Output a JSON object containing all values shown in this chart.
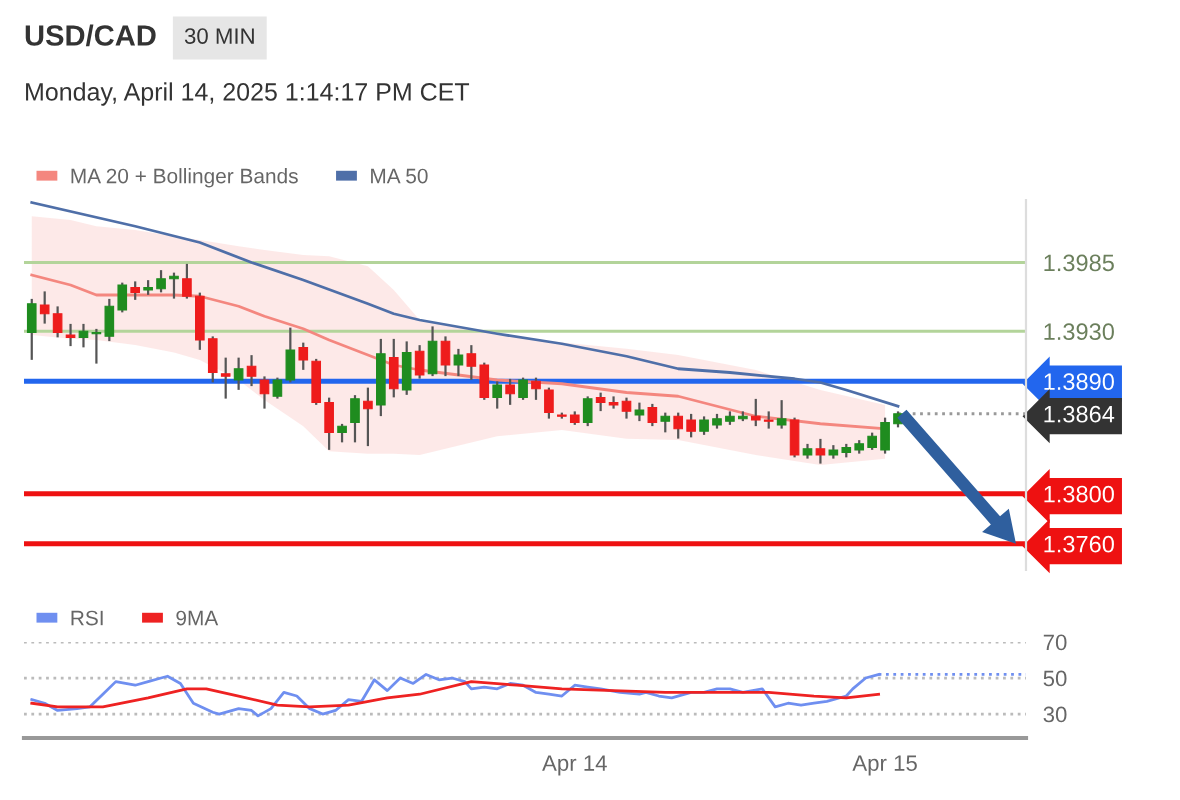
{
  "chart_data": [
    {
      "type": "candlestick",
      "title": "USD/CAD",
      "subtitle": "30 MIN",
      "annotations": [
        "Monday, April 14, 2025 1:14:17 PM CET"
      ],
      "x": [
        "2025-04-12T06:00",
        "2025-04-12T07:00",
        "2025-04-12T08:00",
        "2025-04-12T09:00",
        "2025-04-12T10:00",
        "2025-04-12T11:00",
        "2025-04-12T12:00",
        "2025-04-12T13:00",
        "2025-04-12T14:00",
        "2025-04-12T15:00",
        "2025-04-12T16:00",
        "2025-04-12T17:00",
        "2025-04-12T18:00",
        "2025-04-12T19:00",
        "2025-04-12T20:00",
        "2025-04-12T21:00",
        "2025-04-12T22:00",
        "2025-04-12T23:00",
        "2025-04-13T00:00",
        "2025-04-13T01:00",
        "2025-04-13T02:00",
        "2025-04-13T03:00",
        "2025-04-13T04:00",
        "2025-04-13T05:00",
        "2025-04-13T06:00",
        "2025-04-13T07:00",
        "2025-04-13T08:00",
        "2025-04-13T09:00",
        "2025-04-13T10:00",
        "2025-04-13T11:00",
        "2025-04-13T12:00",
        "2025-04-13T13:00",
        "2025-04-13T14:00",
        "2025-04-13T15:00",
        "2025-04-13T16:00",
        "2025-04-13T17:00",
        "2025-04-13T18:00",
        "2025-04-13T19:00",
        "2025-04-13T20:00",
        "2025-04-13T21:00",
        "2025-04-13T22:00",
        "2025-04-13T23:00",
        "2025-04-14T00:00",
        "2025-04-14T01:00",
        "2025-04-14T02:00",
        "2025-04-14T03:00",
        "2025-04-14T04:00",
        "2025-04-14T05:00",
        "2025-04-14T06:00",
        "2025-04-14T07:00",
        "2025-04-14T08:00",
        "2025-04-14T09:00",
        "2025-04-14T10:00",
        "2025-04-14T11:00",
        "2025-04-14T12:00",
        "2025-04-14T13:00",
        "2025-04-14T14:00",
        "2025-04-14T15:00",
        "2025-04-14T16:00",
        "2025-04-14T17:00",
        "2025-04-14T18:00",
        "2025-04-14T19:00",
        "2025-04-14T20:00",
        "2025-04-14T21:00",
        "2025-04-14T22:00",
        "2025-04-14T23:00",
        "2025-04-15T00:00",
        "2025-04-15T01:00"
      ],
      "ohlc": [
        [
          1.3929,
          1.3955,
          1.3908,
          1.3952
        ],
        [
          1.3951,
          1.3961,
          1.3937,
          1.3944
        ],
        [
          1.3944,
          1.3949,
          1.3926,
          1.3929
        ],
        [
          1.3927,
          1.3935,
          1.3919,
          1.3925
        ],
        [
          1.3925,
          1.3935,
          1.3918,
          1.393
        ],
        [
          1.3928,
          1.3931,
          1.3905,
          1.3929
        ],
        [
          1.3926,
          1.3955,
          1.3923,
          1.395
        ],
        [
          1.3947,
          1.3968,
          1.3946,
          1.3967
        ],
        [
          1.3965,
          1.3969,
          1.3956,
          1.3961
        ],
        [
          1.3963,
          1.397,
          1.396,
          1.3965
        ],
        [
          1.3964,
          1.3978,
          1.3962,
          1.3972
        ],
        [
          1.3972,
          1.3976,
          1.3957,
          1.3974
        ],
        [
          1.3972,
          1.3983,
          1.3957,
          1.3958
        ],
        [
          1.3958,
          1.396,
          1.3916,
          1.3923
        ],
        [
          1.3924,
          1.3925,
          1.389,
          1.3897
        ],
        [
          1.3896,
          1.3908,
          1.3877,
          1.3894
        ],
        [
          1.3891,
          1.3908,
          1.3884,
          1.39
        ],
        [
          1.3902,
          1.391,
          1.3887,
          1.3894
        ],
        [
          1.3891,
          1.3893,
          1.3869,
          1.388
        ],
        [
          1.3878,
          1.3892,
          1.3877,
          1.3891
        ],
        [
          1.3891,
          1.3932,
          1.389,
          1.3915
        ],
        [
          1.3917,
          1.392,
          1.39,
          1.3907
        ],
        [
          1.3906,
          1.3907,
          1.3872,
          1.3873
        ],
        [
          1.3873,
          1.3876,
          1.3836,
          1.3849
        ],
        [
          1.3849,
          1.3855,
          1.3842,
          1.3854
        ],
        [
          1.3857,
          1.3878,
          1.3842,
          1.3876
        ],
        [
          1.3874,
          1.3884,
          1.3839,
          1.3868
        ],
        [
          1.3871,
          1.3923,
          1.3863,
          1.3912
        ],
        [
          1.3909,
          1.3923,
          1.3878,
          1.3884
        ],
        [
          1.3883,
          1.3921,
          1.388,
          1.3913
        ],
        [
          1.3914,
          1.3918,
          1.3893,
          1.3895
        ],
        [
          1.3896,
          1.3933,
          1.3895,
          1.3922
        ],
        [
          1.3922,
          1.3925,
          1.3895,
          1.3903
        ],
        [
          1.3903,
          1.3915,
          1.3895,
          1.3911
        ],
        [
          1.3912,
          1.3918,
          1.3892,
          1.3902
        ],
        [
          1.3903,
          1.3904,
          1.3876,
          1.3877
        ],
        [
          1.3877,
          1.3889,
          1.3869,
          1.3887
        ],
        [
          1.3887,
          1.3891,
          1.3872,
          1.388
        ],
        [
          1.3877,
          1.3892,
          1.3876,
          1.3891
        ],
        [
          1.389,
          1.3892,
          1.3876,
          1.3884
        ],
        [
          1.3883,
          1.3884,
          1.3861,
          1.3865
        ],
        [
          1.3863,
          1.3864,
          1.3861,
          1.3862
        ],
        [
          1.3863,
          1.3865,
          1.3856,
          1.3857
        ],
        [
          1.3857,
          1.3877,
          1.3855,
          1.3876
        ],
        [
          1.3877,
          1.388,
          1.3867,
          1.3873
        ],
        [
          1.3873,
          1.3877,
          1.3869,
          1.3871
        ],
        [
          1.3874,
          1.3876,
          1.3861,
          1.3866
        ],
        [
          1.3863,
          1.3872,
          1.3859,
          1.3867
        ],
        [
          1.3869,
          1.3871,
          1.3855,
          1.3857
        ],
        [
          1.3858,
          1.3864,
          1.385,
          1.3862
        ],
        [
          1.3862,
          1.3864,
          1.3845,
          1.3852
        ],
        [
          1.3859,
          1.3863,
          1.3846,
          1.385
        ],
        [
          1.385,
          1.3861,
          1.3848,
          1.3859
        ],
        [
          1.3855,
          1.3863,
          1.3853,
          1.386
        ],
        [
          1.3858,
          1.3865,
          1.3856,
          1.3862
        ],
        [
          1.386,
          1.3865,
          1.3859,
          1.3862
        ],
        [
          1.3862,
          1.3875,
          1.3855,
          1.3859
        ],
        [
          1.3859,
          1.3865,
          1.3853,
          1.3858
        ],
        [
          1.3855,
          1.3874,
          1.3853,
          1.386
        ],
        [
          1.3859,
          1.386,
          1.383,
          1.3831
        ],
        [
          1.3831,
          1.3839,
          1.3829,
          1.3836
        ],
        [
          1.3836,
          1.3843,
          1.3825,
          1.3831
        ],
        [
          1.3831,
          1.3838,
          1.3829,
          1.3835
        ],
        [
          1.3833,
          1.3839,
          1.383,
          1.3837
        ],
        [
          1.3835,
          1.3842,
          1.3833,
          1.384
        ],
        [
          1.3837,
          1.3848,
          1.3836,
          1.3846
        ],
        [
          1.3835,
          1.386,
          1.3833,
          1.3857
        ],
        [
          1.3856,
          1.3865,
          1.3854,
          1.3864
        ]
      ],
      "colors": [
        "#1f8c1f",
        "#ee1c1c",
        "#ee1c1c",
        "#ee1c1c",
        "#1f8c1f",
        "#1f8c1f",
        "#1f8c1f",
        "#1f8c1f",
        "#ee1c1c",
        "#1f8c1f",
        "#1f8c1f",
        "#1f8c1f",
        "#ee1c1c",
        "#ee1c1c",
        "#ee1c1c",
        "#ee1c1c",
        "#1f8c1f",
        "#ee1c1c",
        "#ee1c1c",
        "#1f8c1f",
        "#1f8c1f",
        "#ee1c1c",
        "#ee1c1c",
        "#ee1c1c",
        "#1f8c1f",
        "#1f8c1f",
        "#ee1c1c",
        "#1f8c1f",
        "#ee1c1c",
        "#1f8c1f",
        "#ee1c1c",
        "#1f8c1f",
        "#ee1c1c",
        "#1f8c1f",
        "#ee1c1c",
        "#ee1c1c",
        "#1f8c1f",
        "#ee1c1c",
        "#1f8c1f",
        "#ee1c1c",
        "#ee1c1c",
        "#ee1c1c",
        "#ee1c1c",
        "#1f8c1f",
        "#ee1c1c",
        "#ee1c1c",
        "#ee1c1c",
        "#1f8c1f",
        "#ee1c1c",
        "#1f8c1f",
        "#ee1c1c",
        "#ee1c1c",
        "#1f8c1f",
        "#1f8c1f",
        "#1f8c1f",
        "#1f8c1f",
        "#ee1c1c",
        "#ee1c1c",
        "#1f8c1f",
        "#ee1c1c",
        "#1f8c1f",
        "#ee1c1c",
        "#1f8c1f",
        "#1f8c1f",
        "#1f8c1f",
        "#1f8c1f",
        "#1f8c1f",
        "#1f8c1f"
      ],
      "series": [
        {
          "name": "MA 20 + Bollinger Bands",
          "type": "line",
          "color": "#f4877f",
          "x": [
            "2025-04-12T06:00",
            "2025-04-12T09:00",
            "2025-04-12T11:00",
            "2025-04-12T14:00",
            "2025-04-12T17:00",
            "2025-04-12T19:00",
            "2025-04-12T22:00",
            "2025-04-13T00:00",
            "2025-04-13T03:00",
            "2025-04-13T05:00",
            "2025-04-13T08:00",
            "2025-04-13T10:00",
            "2025-04-13T12:00",
            "2025-04-13T18:00",
            "2025-04-13T23:00",
            "2025-04-14T04:00",
            "2025-04-14T08:00",
            "2025-04-14T14:00",
            "2025-04-14T19:00",
            "2025-04-15T00:00"
          ],
          "values": [
            1.3975,
            1.3967,
            1.3959,
            1.3959,
            1.3959,
            1.3958,
            1.395,
            1.3942,
            1.3932,
            1.3923,
            1.3911,
            1.3903,
            1.3899,
            1.3891,
            1.3888,
            1.3881,
            1.3878,
            1.3862,
            1.3856,
            1.3852
          ],
          "upper": [
            1.4022,
            1.4019,
            1.4014,
            1.4011,
            1.4006,
            1.4003,
            1.3998,
            1.3995,
            1.3991,
            1.399,
            1.3982,
            1.3963,
            1.3939,
            1.3927,
            1.3921,
            1.3916,
            1.3911,
            1.3899,
            1.3883,
            1.3871
          ],
          "lower": [
            1.3927,
            1.3924,
            1.3923,
            1.3919,
            1.3913,
            1.3907,
            1.3891,
            1.3875,
            1.3854,
            1.3834,
            1.3832,
            1.3832,
            1.3831,
            1.3846,
            1.3851,
            1.3844,
            1.3843,
            1.3831,
            1.3823,
            1.3828
          ]
        },
        {
          "name": "MA 50",
          "type": "line",
          "color": "#4f6fa8",
          "x": [
            "2025-04-12T06:00",
            "2025-04-12T14:00",
            "2025-04-12T19:00",
            "2025-04-12T23:00",
            "2025-04-13T03:00",
            "2025-04-13T08:00",
            "2025-04-13T10:00",
            "2025-04-13T12:00",
            "2025-04-13T18:00",
            "2025-04-13T23:00",
            "2025-04-14T04:00",
            "2025-04-14T08:00",
            "2025-04-14T12:00",
            "2025-04-14T17:00",
            "2025-04-14T19:00",
            "2025-04-14T21:00",
            "2025-04-15T01:00"
          ],
          "values": [
            1.4033,
            1.4014,
            1.4001,
            1.3985,
            1.3971,
            1.3952,
            1.3944,
            1.3939,
            1.3928,
            1.392,
            1.391,
            1.39,
            1.3897,
            1.3892,
            1.3889,
            1.3883,
            1.387
          ]
        }
      ],
      "ref_lines": [
        {
          "axis": "y",
          "value": 1.3985,
          "color": "#b3d49a"
        },
        {
          "axis": "y",
          "value": 1.393,
          "color": "#b3d49a"
        },
        {
          "axis": "y",
          "value": 1.389,
          "color": "#2266ee"
        },
        {
          "axis": "y",
          "value": 1.3864,
          "color": "#999999",
          "line_style": "dotted"
        },
        {
          "axis": "y",
          "value": 1.38,
          "color": "#ee1111"
        },
        {
          "axis": "y",
          "value": 1.376,
          "color": "#ee1111"
        }
      ],
      "yticks": [
        1.3985,
        {
          "value": 1.393,
          "label": "1.3930"
        },
        {
          "value": 1.389,
          "label": "1.3890"
        },
        1.3864,
        {
          "value": 1.38,
          "label": "1.3800"
        },
        {
          "value": 1.376,
          "label": "1.3760"
        }
      ],
      "xlim": [
        "2025-04-12T05:24",
        "2025-04-15T10:54"
      ],
      "ylim": [
        1.3739,
        1.4035
      ],
      "legend": "top left"
    },
    {
      "type": "line",
      "series": [
        {
          "name": "RSI",
          "color": "#6f8ff0",
          "x": [
            "2025-04-12T06:00",
            "2025-04-12T07:00",
            "2025-04-12T08:00",
            "2025-04-12T09:30",
            "2025-04-12T10:30",
            "2025-04-12T11:30",
            "2025-04-12T12:30",
            "2025-04-12T14:00",
            "2025-04-12T15:00",
            "2025-04-12T16:00",
            "2025-04-12T16:30",
            "2025-04-12T17:30",
            "2025-04-12T18:30",
            "2025-04-12T20:00",
            "2025-04-12T20:30",
            "2025-04-12T22:00",
            "2025-04-12T23:00",
            "2025-04-12T23:30",
            "2025-04-13T00:30",
            "2025-04-13T01:30",
            "2025-04-13T02:30",
            "2025-04-13T03:30",
            "2025-04-13T04:30",
            "2025-04-13T05:30",
            "2025-04-13T06:30",
            "2025-04-13T07:30",
            "2025-04-13T08:30",
            "2025-04-13T09:30",
            "2025-04-13T10:30",
            "2025-04-13T11:30",
            "2025-04-13T12:30",
            "2025-04-13T13:30",
            "2025-04-13T14:30",
            "2025-04-13T15:30",
            "2025-04-13T16:00",
            "2025-04-13T17:00",
            "2025-04-13T18:00",
            "2025-04-13T19:00",
            "2025-04-13T20:00",
            "2025-04-13T21:00",
            "2025-04-13T22:00",
            "2025-04-13T23:00",
            "2025-04-14T00:00",
            "2025-04-14T01:00",
            "2025-04-14T02:00",
            "2025-04-14T03:30",
            "2025-04-14T05:00",
            "2025-04-14T05:30",
            "2025-04-14T06:30",
            "2025-04-14T07:30",
            "2025-04-14T09:00",
            "2025-04-14T10:00",
            "2025-04-14T11:00",
            "2025-04-14T12:00",
            "2025-04-14T13:00",
            "2025-04-14T14:30",
            "2025-04-14T15:30",
            "2025-04-14T16:30",
            "2025-04-14T17:30",
            "2025-04-14T18:30",
            "2025-04-14T19:30",
            "2025-04-14T21:00",
            "2025-04-14T21:30",
            "2025-04-14T22:30",
            "2025-04-14T23:30"
          ],
          "values": [
            38,
            36,
            32,
            33,
            34,
            41,
            48,
            46,
            48,
            50,
            51,
            47,
            36,
            31,
            30,
            33,
            32,
            29,
            33,
            42,
            40,
            33,
            30,
            32,
            38,
            37,
            49,
            43,
            50,
            47,
            52,
            49,
            50,
            48,
            44,
            45,
            44,
            47,
            46,
            42,
            41,
            40,
            46,
            45,
            44,
            42,
            41,
            42,
            40,
            39,
            42,
            42,
            44,
            44,
            42,
            44,
            34,
            36,
            35,
            36,
            37,
            40,
            44,
            50,
            52
          ]
        },
        {
          "name": "9MA",
          "color": "#ee2222",
          "x": [
            "2025-04-12T06:00",
            "2025-04-12T08:00",
            "2025-04-12T11:30",
            "2025-04-12T15:00",
            "2025-04-12T18:00",
            "2025-04-12T19:30",
            "2025-04-12T22:00",
            "2025-04-13T01:00",
            "2025-04-13T03:30",
            "2025-04-13T06:30",
            "2025-04-13T09:30",
            "2025-04-13T12:00",
            "2025-04-13T16:00",
            "2025-04-13T19:30",
            "2025-04-13T23:00",
            "2025-04-14T03:00",
            "2025-04-14T07:00",
            "2025-04-14T11:30",
            "2025-04-14T15:00",
            "2025-04-14T18:30",
            "2025-04-14T21:00",
            "2025-04-14T23:30"
          ],
          "values": [
            36,
            34,
            34,
            39,
            44,
            44,
            40,
            35,
            34,
            35,
            39,
            41,
            48,
            46,
            44,
            43,
            42,
            42,
            42,
            40,
            39,
            41
          ]
        }
      ],
      "ref_lines": [
        {
          "axis": "y",
          "value": 52,
          "color": "#6f8ff0",
          "line_style": "dotted"
        }
      ],
      "xlim": [
        "2025-04-12T05:24",
        "2025-04-15T10:54"
      ],
      "xticks": [
        {
          "value": "2025-04-14",
          "label": "Apr 14"
        },
        {
          "value": "2025-04-15",
          "label": "Apr 15"
        }
      ],
      "ylim": [
        16.7,
        70
      ],
      "yticks": [
        30,
        50,
        70
      ],
      "grid": "y",
      "legend": "top left"
    }
  ]
}
